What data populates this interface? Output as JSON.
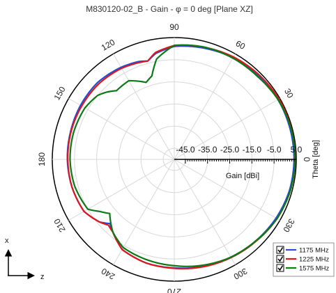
{
  "chart_data": {
    "type": "line",
    "subtype": "polar",
    "title": "M830120-02_B - Gain - φ = 0 deg [Plane XZ]",
    "angle_axis_label": "Theta [deg]",
    "radial_axis_label": "Gain [dBi]",
    "radial_range": [
      -50,
      5
    ],
    "radial_ticks": [
      -45,
      -35,
      -25,
      -15,
      -5,
      5
    ],
    "radial_tick_labels": [
      "-45.0",
      "-35.0",
      "-25.0",
      "-15.0",
      "-5.0",
      "5.0"
    ],
    "angle_labels": [
      {
        "angle": 0,
        "text": "0"
      },
      {
        "angle": 30,
        "text": "30"
      },
      {
        "angle": 60,
        "text": "60"
      },
      {
        "angle": 90,
        "text": "90"
      },
      {
        "angle": 120,
        "text": "120"
      },
      {
        "angle": 150,
        "text": "150"
      },
      {
        "angle": 180,
        "text": "180"
      },
      {
        "angle": 210,
        "text": "210"
      },
      {
        "angle": 240,
        "text": "240"
      },
      {
        "angle": 270,
        "text": "270"
      },
      {
        "angle": 300,
        "text": "300"
      },
      {
        "angle": 330,
        "text": "330"
      }
    ],
    "grid": true,
    "legend_position": "bottom-right",
    "axes_indicator": {
      "vertical": "x",
      "horizontal": "z"
    },
    "series": [
      {
        "name": "1175 MHz",
        "color": "#1f4fd8",
        "theta": [
          0,
          15,
          30,
          45,
          60,
          75,
          90,
          100,
          105,
          110,
          120,
          135,
          150,
          165,
          180,
          195,
          210,
          220,
          225,
          230,
          240,
          255,
          270,
          285,
          300,
          315,
          330,
          345,
          360
        ],
        "gain": [
          4,
          4,
          4,
          3.6,
          3,
          2,
          1,
          -1.5,
          -4,
          -3,
          -2,
          -1,
          -1.2,
          -1.6,
          -1.8,
          -2.2,
          -3,
          -6,
          -9,
          -7,
          -3,
          -1.5,
          -1,
          0,
          1,
          2,
          3,
          3.8,
          4
        ]
      },
      {
        "name": "1225 MHz",
        "color": "#e0161c",
        "theta": [
          0,
          15,
          30,
          45,
          60,
          75,
          90,
          100,
          105,
          110,
          120,
          135,
          150,
          165,
          180,
          195,
          210,
          220,
          225,
          230,
          240,
          255,
          270,
          285,
          300,
          315,
          330,
          345,
          360
        ],
        "gain": [
          4.5,
          4.5,
          4.5,
          4,
          3.4,
          2.4,
          1.4,
          -1,
          -4,
          -3.5,
          -2.5,
          -1.8,
          -1.8,
          -1.8,
          -2,
          -2.2,
          -3,
          -6,
          -8,
          -7,
          -3,
          -1.5,
          -0.8,
          0.2,
          1.2,
          2.2,
          3.5,
          4.2,
          4.5
        ]
      },
      {
        "name": "1575 MHz",
        "color": "#0b7a14",
        "theta": [
          0,
          15,
          30,
          45,
          60,
          75,
          90,
          100,
          105,
          110,
          120,
          130,
          135,
          140,
          150,
          165,
          180,
          195,
          210,
          215,
          220,
          230,
          240,
          255,
          270,
          285,
          300,
          315,
          330,
          345,
          360
        ],
        "gain": [
          4.5,
          4.4,
          4,
          3,
          2.8,
          2.5,
          1.5,
          -4,
          -11,
          -13,
          -9,
          -9.5,
          -7,
          -5,
          -3.5,
          -3,
          -3,
          -3.5,
          -5,
          -9,
          -12,
          -7,
          -4,
          -3,
          -2,
          -0.5,
          1,
          2,
          3.5,
          4.2,
          4.5
        ]
      }
    ]
  }
}
